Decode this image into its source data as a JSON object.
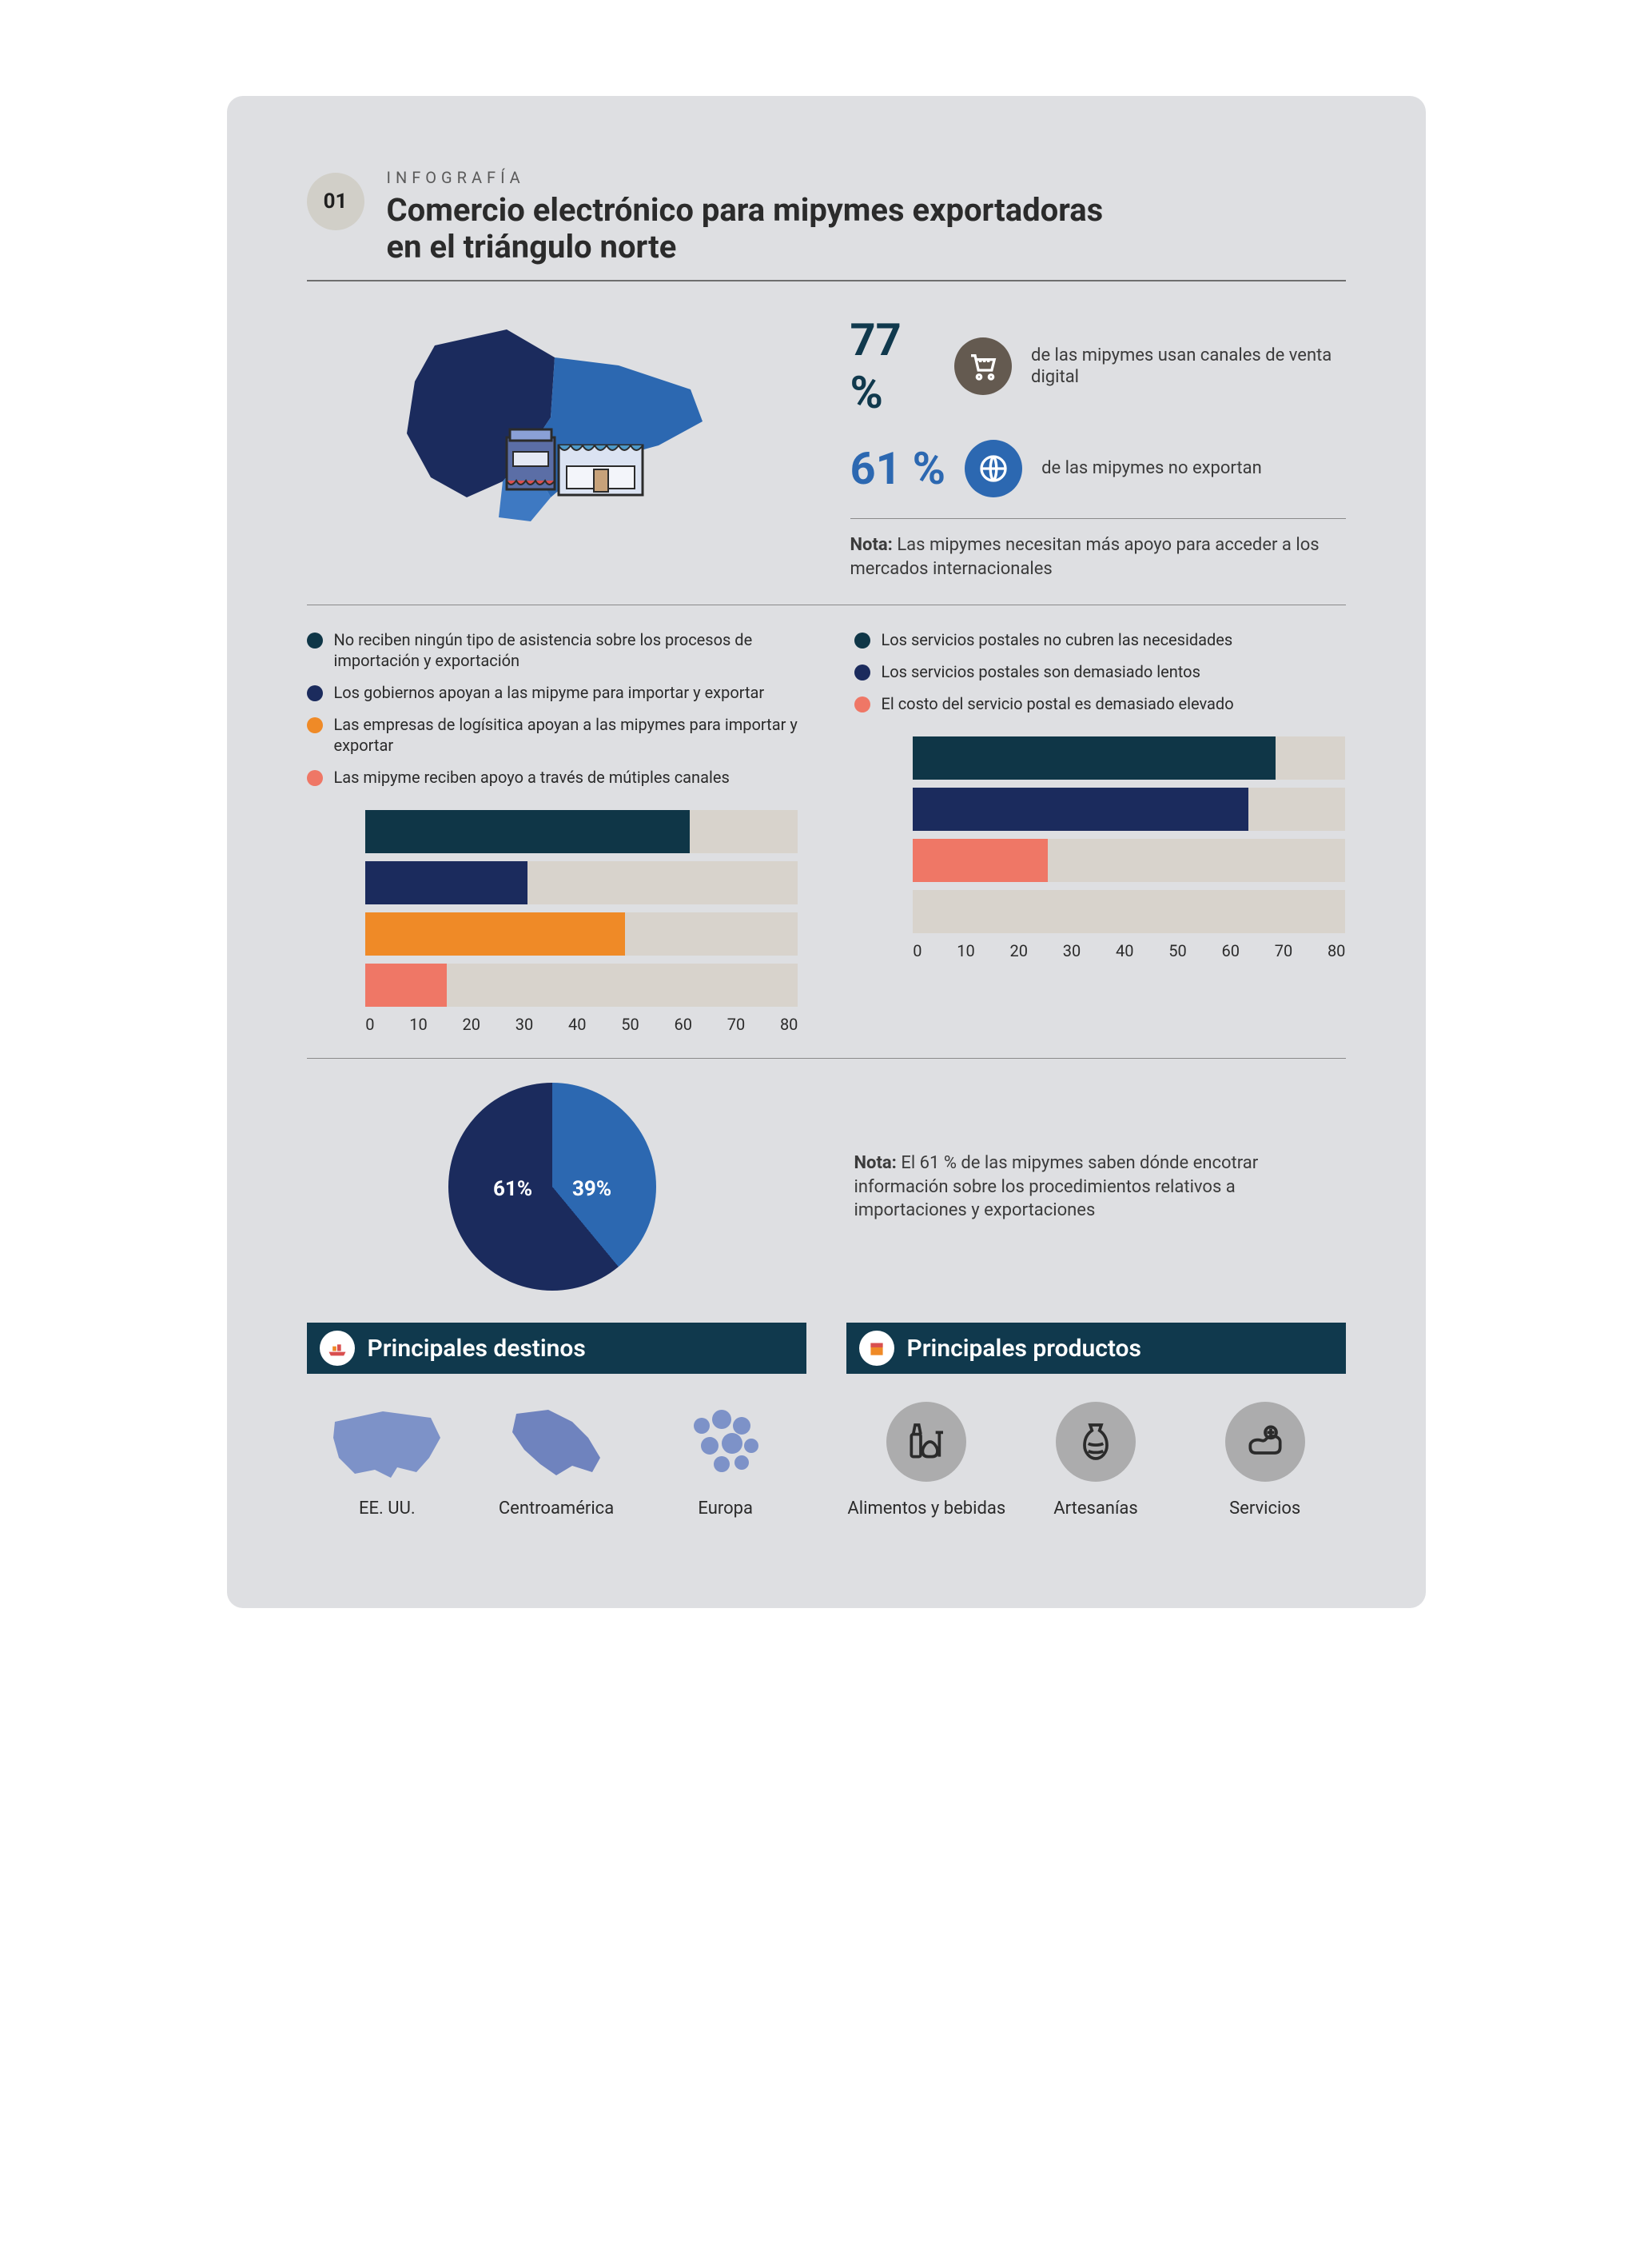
{
  "colors": {
    "page_bg": "#dedfe2",
    "teal": "#0f3647",
    "navy": "#1b2b5d",
    "blue": "#2c68b1",
    "orange": "#ef8a27",
    "salmon": "#ef7766",
    "bar_bg": "#d8d3cc",
    "gray_icon_bg": "#acacad",
    "brown_icon": "#645a50",
    "map_light": "#7d92c8"
  },
  "header": {
    "number": "01",
    "kicker": "INFOGRAFÍA",
    "title_line1": "Comercio electrónico para mipymes exportadoras",
    "title_line2": "en el triángulo norte"
  },
  "stats": [
    {
      "pct": "77 %",
      "pct_color": "#10394d",
      "icon_bg": "#645a50",
      "icon": "cart",
      "desc": "de las mipymes usan canales de venta digital"
    },
    {
      "pct": "61 %",
      "pct_color": "#2c68b1",
      "icon_bg": "#2c68b1",
      "icon": "globe",
      "desc": "de las mipymes no exportan"
    }
  ],
  "top_note_bold": "Nota:",
  "top_note_rest": " Las mipymes necesitan más apoyo para acceder a los mercados internacionales",
  "legend_left": [
    {
      "color": "#0f3647",
      "text": "No reciben ningún tipo de asistencia sobre los procesos de importación y exportación"
    },
    {
      "color": "#1b2b5d",
      "text": "Los gobiernos apoyan a las mipyme para importar y exportar"
    },
    {
      "color": "#ef8a27",
      "text": "Las empresas de logísitica apoyan a las mipymes para importar y exportar"
    },
    {
      "color": "#ef7766",
      "text": "Las mipyme reciben apoyo a través de mútiples canales"
    }
  ],
  "legend_right": [
    {
      "color": "#0f3647",
      "text": "Los servicios postales no cubren las necesidades"
    },
    {
      "color": "#1b2b5d",
      "text": "Los servicios postales son demasiado lentos"
    },
    {
      "color": "#ef7766",
      "text": "El costo del servicio postal es demasiado elevado"
    }
  ],
  "chart_left": {
    "xmax": 80,
    "xtick_step": 10,
    "bars": [
      {
        "value": 60,
        "color": "#0f3647"
      },
      {
        "value": 30,
        "color": "#1b2b5d"
      },
      {
        "value": 48,
        "color": "#ef8a27"
      },
      {
        "value": 15,
        "color": "#ef7766"
      }
    ],
    "ticks": [
      "0",
      "10",
      "20",
      "30",
      "40",
      "50",
      "60",
      "70",
      "80"
    ]
  },
  "chart_right": {
    "xmax": 80,
    "xtick_step": 10,
    "bars": [
      {
        "value": 67,
        "color": "#0f3647"
      },
      {
        "value": 62,
        "color": "#1b2b5d"
      },
      {
        "value": 25,
        "color": "#ef7766"
      },
      {
        "value": 0,
        "color": "#d8d3cc"
      }
    ],
    "ticks": [
      "0",
      "10",
      "20",
      "30",
      "40",
      "50",
      "60",
      "70",
      "80"
    ]
  },
  "pie": {
    "slices": [
      {
        "label": "61%",
        "value": 61,
        "color": "#1b2b5d"
      },
      {
        "label": "39%",
        "value": 39,
        "color": "#2c68b1"
      }
    ]
  },
  "pie_note_bold": "Nota:",
  "pie_note_rest": " El 61 % de las mipymes saben dónde encotrar información sobre los procedimientos relativos a importaciones y exportaciones",
  "destinations": {
    "title": "Principales destinos",
    "items": [
      {
        "label": "EE. UU."
      },
      {
        "label": "Centroamérica"
      },
      {
        "label": "Europa"
      }
    ]
  },
  "products": {
    "title": "Principales productos",
    "items": [
      {
        "label": "Alimentos y bebidas"
      },
      {
        "label": "Artesanías"
      },
      {
        "label": "Servicios"
      }
    ]
  }
}
